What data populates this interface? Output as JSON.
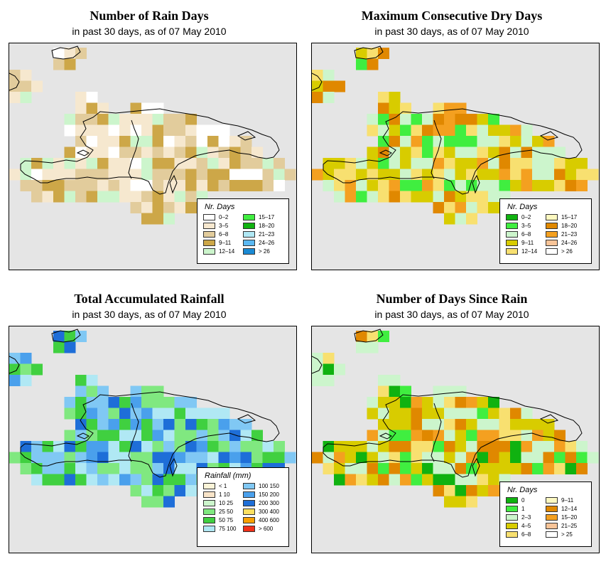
{
  "colors": {
    "ocean": "#e5e5e5",
    "outline": "#000000"
  },
  "panels": [
    {
      "title": "Number of Rain Days",
      "subtitle": "in past 30 days, as of  07 May 2010",
      "legend": {
        "title": "Nr. Days",
        "items": [
          {
            "label": "0–2",
            "color": "#ffffff"
          },
          {
            "label": "3–5",
            "color": "#f6e8cf"
          },
          {
            "label": "6–8",
            "color": "#e2cc9c"
          },
          {
            "label": "9–11",
            "color": "#cda748"
          },
          {
            "label": "12–14",
            "color": "#ccf5cc"
          },
          {
            "label": "15–17",
            "color": "#40ee40"
          },
          {
            "label": "18–20",
            "color": "#10b210"
          },
          {
            "label": "21–23",
            "color": "#b0e8f4"
          },
          {
            "label": "24–26",
            "color": "#5ab8f2"
          },
          {
            "label": "> 26",
            "color": "#1a8ad4"
          }
        ]
      }
    },
    {
      "title": "Maximum Consecutive Dry Days",
      "subtitle": "in past 30 days, as of  07 May 2010",
      "legend": {
        "title": "Nr. Days",
        "items": [
          {
            "label": "0–2",
            "color": "#10b210"
          },
          {
            "label": "3–5",
            "color": "#40ee40"
          },
          {
            "label": "6–8",
            "color": "#ccf5cc"
          },
          {
            "label": "9–11",
            "color": "#d8cc00"
          },
          {
            "label": "12–14",
            "color": "#f8e070"
          },
          {
            "label": "15–17",
            "color": "#fcf8c0"
          },
          {
            "label": "18–20",
            "color": "#e08800"
          },
          {
            "label": "21–23",
            "color": "#f4a020"
          },
          {
            "label": "24–26",
            "color": "#f8c498"
          },
          {
            "label": "> 26",
            "color": "#ffffff"
          }
        ]
      }
    },
    {
      "title": "Total Accumulated Rainfall",
      "subtitle": "in past 30 days, as of  07 May 2010",
      "legend": {
        "title": "Rainfall (mm)",
        "items": [
          {
            "label": "<  1",
            "color": "#fcf4d8"
          },
          {
            "label": "1   10",
            "color": "#f8e4c8"
          },
          {
            "label": "10   25",
            "color": "#ccf5cc"
          },
          {
            "label": "25   50",
            "color": "#80e880"
          },
          {
            "label": "50   75",
            "color": "#40d040"
          },
          {
            "label": "75  100",
            "color": "#b0e8f4"
          },
          {
            "label": "100  150",
            "color": "#80c8f4"
          },
          {
            "label": "150  200",
            "color": "#4aa0ec"
          },
          {
            "label": "200  300",
            "color": "#1e6ed8"
          },
          {
            "label": "300  400",
            "color": "#fce060"
          },
          {
            "label": "400  600",
            "color": "#f8a000"
          },
          {
            "label": "> 600",
            "color": "#f03018"
          }
        ]
      }
    },
    {
      "title": "Number of Days Since Rain",
      "subtitle": "in past 30 days, as of  07 May 2010",
      "legend": {
        "title": "Nr. Days",
        "items": [
          {
            "label": "0",
            "color": "#10b210"
          },
          {
            "label": "1",
            "color": "#40ee40"
          },
          {
            "label": "2–3",
            "color": "#ccf5cc"
          },
          {
            "label": "4–5",
            "color": "#d8cc00"
          },
          {
            "label": "6–8",
            "color": "#f8e070"
          },
          {
            "label": "9–11",
            "color": "#fcf8c0"
          },
          {
            "label": "12–14",
            "color": "#e08800"
          },
          {
            "label": "15–20",
            "color": "#f4a020"
          },
          {
            "label": "21–25",
            "color": "#f8c498"
          },
          {
            "label": "> 25",
            "color": "#ffffff"
          }
        ]
      }
    }
  ]
}
